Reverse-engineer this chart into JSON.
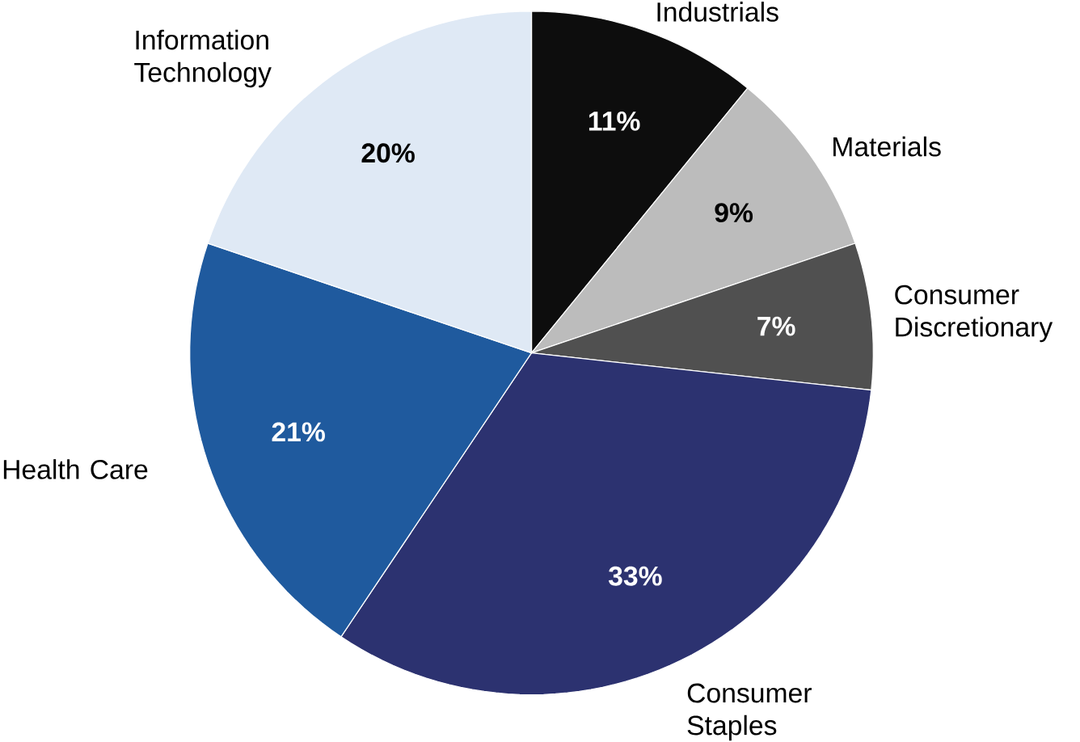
{
  "chart_data": {
    "type": "pie",
    "categories": [
      "Industrials",
      "Materials",
      "Consumer Discretionary",
      "Consumer Staples",
      "Health Care",
      "Information Technology"
    ],
    "values": [
      11,
      9,
      7,
      33,
      21,
      20
    ],
    "value_labels": [
      "11%",
      "9%",
      "7%",
      "33%",
      "21%",
      "20%"
    ],
    "colors": [
      "#0d0d0d",
      "#bcbcbc",
      "#505050",
      "#2c3270",
      "#1f5a9e",
      "#dfe9f5"
    ]
  }
}
